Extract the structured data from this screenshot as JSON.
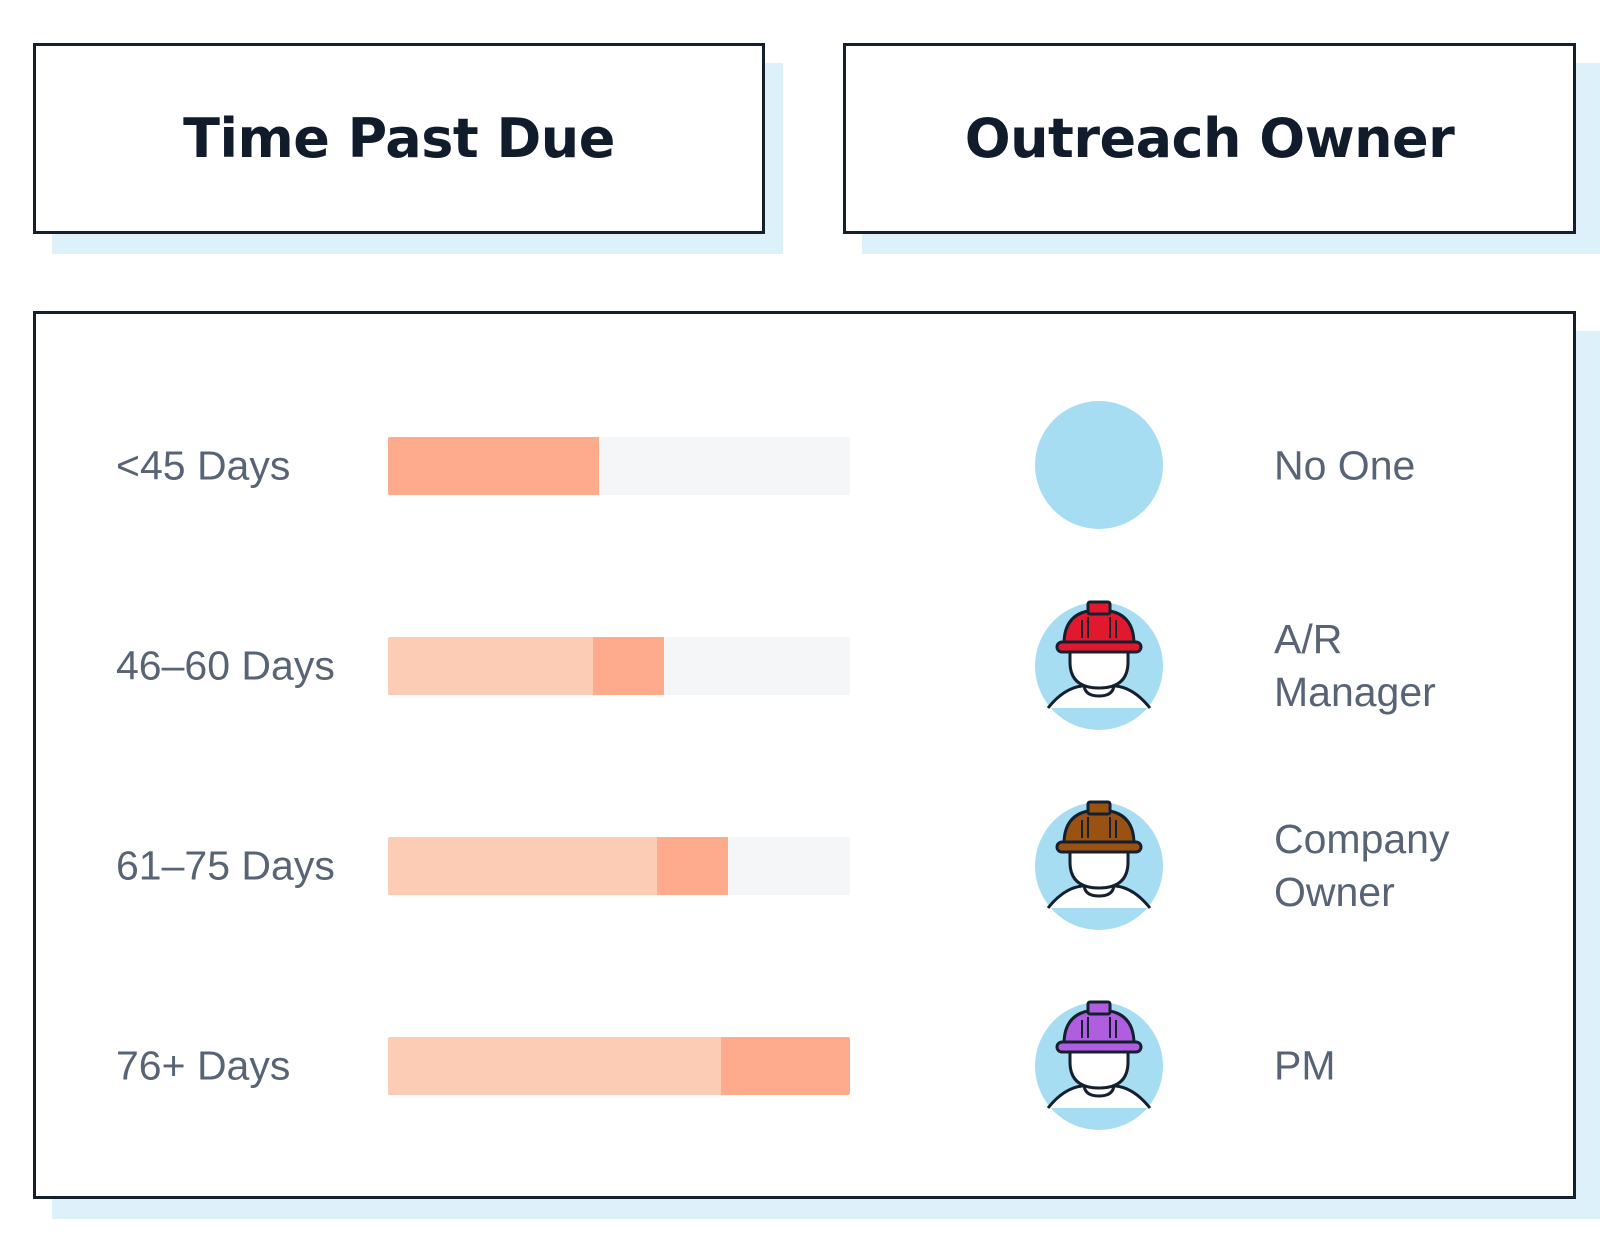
{
  "headers": {
    "time_past_due": "Time Past Due",
    "outreach_owner": "Outreach Owner"
  },
  "colors": {
    "bar_track": "#f5f6f8",
    "bar_base": "#fdccb5",
    "bar_accent": "#fdab8c",
    "avatar_circle": "#a7ddf2",
    "hat_ar_manager": "#e2182e",
    "hat_company_owner": "#9a5212",
    "hat_pm": "#b05ee0"
  },
  "rows": [
    {
      "label": "<45 Days",
      "bar_base_fraction": 0,
      "bar_accent_start_fraction": 0,
      "bar_fill_fraction": 0.457,
      "owner": "No One",
      "owner_icon": "empty-circle-icon"
    },
    {
      "label": "46–60 Days",
      "bar_base_fraction": 0.444,
      "bar_accent_start_fraction": 0.444,
      "bar_fill_fraction": 0.597,
      "owner": "A/R\nManager",
      "owner_icon": "worker-red-hardhat-icon"
    },
    {
      "label": "61–75 Days",
      "bar_base_fraction": 0.583,
      "bar_accent_start_fraction": 0.583,
      "bar_fill_fraction": 0.735,
      "owner": "Company\nOwner",
      "owner_icon": "worker-brown-hardhat-icon"
    },
    {
      "label": "76+ Days",
      "bar_base_fraction": 0.72,
      "bar_accent_start_fraction": 0.72,
      "bar_fill_fraction": 1.0,
      "owner": "PM",
      "owner_icon": "worker-purple-hardhat-icon"
    }
  ]
}
